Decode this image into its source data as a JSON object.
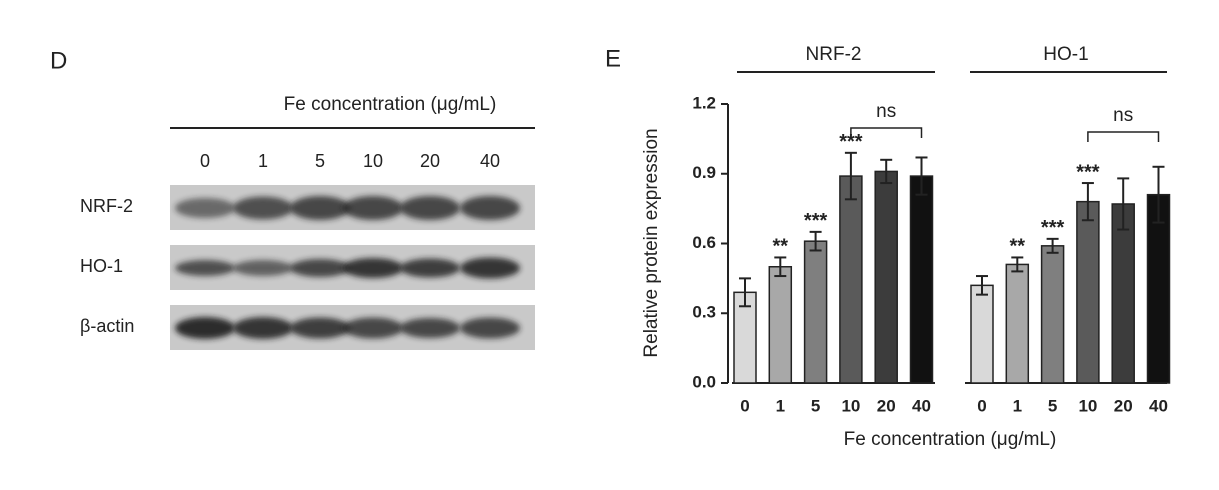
{
  "panel_d": {
    "label": "D",
    "header": "Fe concentration (μg/mL)",
    "lanes": [
      "0",
      "1",
      "5",
      "10",
      "20",
      "40"
    ],
    "rows": [
      "NRF-2",
      "HO-1",
      "β-actin"
    ]
  },
  "chart_data": {
    "type": "bar",
    "label": "E",
    "ylabel": "Relative protein expression",
    "xlabel": "Fe concentration (μg/mL)",
    "categories": [
      "0",
      "1",
      "5",
      "10",
      "20",
      "40"
    ],
    "colors": [
      "#d9d9d9",
      "#a8a8a8",
      "#7f7f7f",
      "#5a5a5a",
      "#3c3c3c",
      "#111111"
    ],
    "groups": [
      {
        "name": "NRF-2",
        "values": [
          0.39,
          0.5,
          0.61,
          0.89,
          0.91,
          0.89
        ],
        "errors": [
          0.06,
          0.04,
          0.04,
          0.1,
          0.05,
          0.08
        ],
        "significance": [
          null,
          "**",
          "***",
          "***",
          null,
          null
        ],
        "bracket_label": "ns"
      },
      {
        "name": "HO-1",
        "values": [
          0.42,
          0.51,
          0.59,
          0.78,
          0.77,
          0.81
        ],
        "errors": [
          0.04,
          0.03,
          0.03,
          0.08,
          0.11,
          0.12
        ],
        "significance": [
          null,
          "**",
          "***",
          "***",
          null,
          null
        ],
        "bracket_label": "ns"
      }
    ],
    "ylim": [
      0,
      1.2
    ],
    "yticks": [
      {
        "value": 0,
        "label": "0.0"
      },
      0.3,
      0.6,
      0.9,
      1.2
    ]
  }
}
